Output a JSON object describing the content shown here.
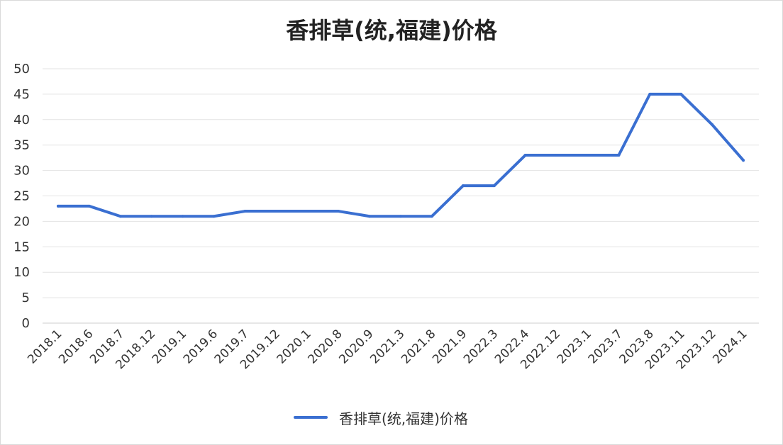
{
  "chart_data": {
    "type": "line",
    "title": "香排草(统,福建)价格",
    "categories": [
      "2018.1",
      "2018.6",
      "2018.7",
      "2018.12",
      "2019.1",
      "2019.6",
      "2019.7",
      "2019.12",
      "2020.1",
      "2020.8",
      "2020.9",
      "2021.3",
      "2021.8",
      "2021.9",
      "2022.3",
      "2022.4",
      "2022.12",
      "2023.1",
      "2023.7",
      "2023.8",
      "2023.11",
      "2023.12",
      "2024.1"
    ],
    "series": [
      {
        "name": "香排草(统,福建)价格",
        "values": [
          23,
          23,
          21,
          21,
          21,
          21,
          22,
          22,
          22,
          22,
          21,
          21,
          21,
          27,
          27,
          33,
          33,
          33,
          33,
          45,
          45,
          39,
          32
        ],
        "color": "#3a6fd1"
      }
    ],
    "yticks": [
      0,
      5,
      10,
      15,
      20,
      25,
      30,
      35,
      40,
      45,
      50
    ],
    "ylim": [
      0,
      50
    ],
    "grid": true,
    "legend": "bottom-center"
  }
}
